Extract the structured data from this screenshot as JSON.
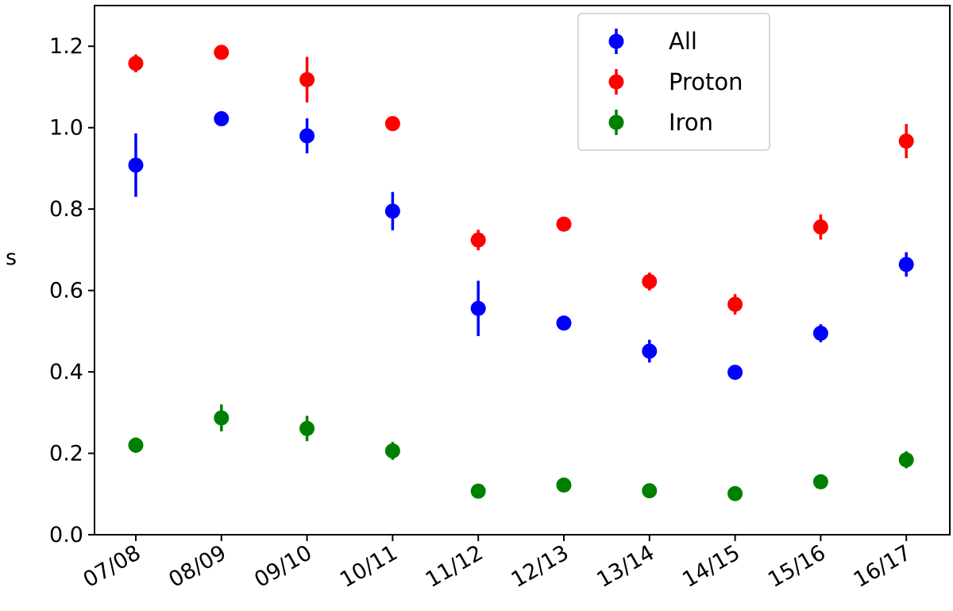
{
  "chart_data": {
    "type": "scatter",
    "categories": [
      "07/08",
      "08/09",
      "09/10",
      "10/11",
      "11/12",
      "12/13",
      "13/14",
      "14/15",
      "15/16",
      "16/17"
    ],
    "xlabel": "",
    "ylabel": "s",
    "ylim": [
      0.0,
      1.3
    ],
    "yticks": [
      "0.0",
      "0.2",
      "0.4",
      "0.6",
      "0.8",
      "1.0",
      "1.2"
    ],
    "grid": false,
    "legend_position": "top-right",
    "series": [
      {
        "name": "All",
        "color": "#0000ff",
        "values": [
          0.908,
          1.022,
          0.98,
          0.795,
          0.556,
          0.52,
          0.451,
          0.399,
          0.495,
          0.664
        ],
        "errors": [
          0.078,
          0.006,
          0.043,
          0.047,
          0.068,
          0.006,
          0.028,
          0.006,
          0.022,
          0.03
        ]
      },
      {
        "name": "Proton",
        "color": "#ff0000",
        "values": [
          1.158,
          1.185,
          1.118,
          1.01,
          0.724,
          0.763,
          0.622,
          0.566,
          0.756,
          0.967
        ],
        "errors": [
          0.022,
          0.006,
          0.056,
          0.006,
          0.025,
          0.006,
          0.022,
          0.025,
          0.031,
          0.042
        ]
      },
      {
        "name": "Iron",
        "color": "#008000",
        "values": [
          0.22,
          0.287,
          0.261,
          0.206,
          0.107,
          0.122,
          0.108,
          0.101,
          0.13,
          0.184
        ],
        "errors": [
          0.019,
          0.033,
          0.031,
          0.022,
          0.006,
          0.006,
          0.006,
          0.006,
          0.006,
          0.021
        ]
      }
    ]
  }
}
